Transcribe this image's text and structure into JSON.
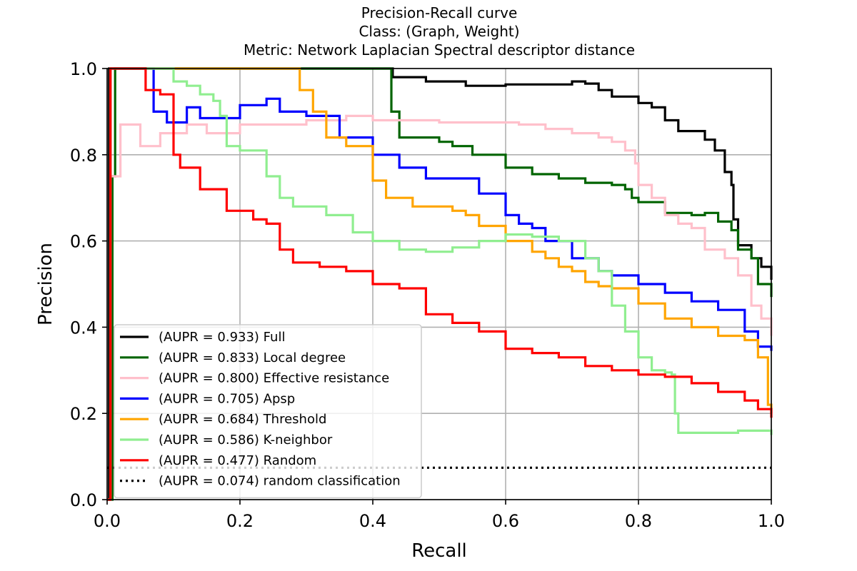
{
  "chart_data": {
    "type": "line",
    "title": [
      "Precision-Recall curve",
      "Class: (Graph, Weight)",
      "Metric: Network Laplacian Spectral descriptor distance"
    ],
    "xlabel": "Recall",
    "ylabel": "Precision",
    "xlim": [
      0.0,
      1.0
    ],
    "ylim": [
      0.0,
      1.0
    ],
    "xticks": [
      "0.0",
      "0.2",
      "0.4",
      "0.6",
      "0.8",
      "1.0"
    ],
    "yticks": [
      "0.0",
      "0.2",
      "0.4",
      "0.6",
      "0.8",
      "1.0"
    ],
    "grid": true,
    "legend_position": "lower-left",
    "series": [
      {
        "name": "(AUPR = 0.933) Full",
        "color": "#000000",
        "style": "solid",
        "points": [
          [
            0.0,
            0.0
          ],
          [
            0.003,
            1.0
          ],
          [
            0.4,
            1.0
          ],
          [
            0.43,
            0.98
          ],
          [
            0.48,
            0.97
          ],
          [
            0.54,
            0.96
          ],
          [
            0.6,
            0.963
          ],
          [
            0.7,
            0.97
          ],
          [
            0.72,
            0.965
          ],
          [
            0.74,
            0.95
          ],
          [
            0.76,
            0.935
          ],
          [
            0.8,
            0.92
          ],
          [
            0.82,
            0.91
          ],
          [
            0.84,
            0.88
          ],
          [
            0.86,
            0.855
          ],
          [
            0.9,
            0.835
          ],
          [
            0.915,
            0.81
          ],
          [
            0.93,
            0.76
          ],
          [
            0.94,
            0.73
          ],
          [
            0.943,
            0.65
          ],
          [
            0.95,
            0.59
          ],
          [
            0.97,
            0.56
          ],
          [
            0.985,
            0.54
          ],
          [
            1.0,
            0.51
          ]
        ]
      },
      {
        "name": "(AUPR = 0.833) Local degree",
        "color": "#006400",
        "style": "solid",
        "points": [
          [
            0.0,
            0.0
          ],
          [
            0.008,
            0.75
          ],
          [
            0.012,
            1.0
          ],
          [
            0.42,
            1.0
          ],
          [
            0.428,
            0.9
          ],
          [
            0.44,
            0.84
          ],
          [
            0.5,
            0.83
          ],
          [
            0.52,
            0.82
          ],
          [
            0.55,
            0.8
          ],
          [
            0.6,
            0.77
          ],
          [
            0.64,
            0.755
          ],
          [
            0.68,
            0.745
          ],
          [
            0.72,
            0.735
          ],
          [
            0.76,
            0.73
          ],
          [
            0.78,
            0.72
          ],
          [
            0.79,
            0.7
          ],
          [
            0.8,
            0.69
          ],
          [
            0.84,
            0.665
          ],
          [
            0.88,
            0.66
          ],
          [
            0.9,
            0.665
          ],
          [
            0.92,
            0.645
          ],
          [
            0.94,
            0.625
          ],
          [
            0.95,
            0.58
          ],
          [
            0.97,
            0.56
          ],
          [
            0.98,
            0.5
          ],
          [
            1.0,
            0.47
          ]
        ]
      },
      {
        "name": "(AUPR = 0.800) Effective resistance",
        "color": "#ffc0cb",
        "style": "solid",
        "points": [
          [
            0.0,
            0.0
          ],
          [
            0.005,
            0.75
          ],
          [
            0.02,
            0.87
          ],
          [
            0.05,
            0.82
          ],
          [
            0.08,
            0.85
          ],
          [
            0.12,
            0.87
          ],
          [
            0.15,
            0.85
          ],
          [
            0.2,
            0.87
          ],
          [
            0.3,
            0.88
          ],
          [
            0.36,
            0.89
          ],
          [
            0.4,
            0.88
          ],
          [
            0.5,
            0.875
          ],
          [
            0.58,
            0.875
          ],
          [
            0.62,
            0.87
          ],
          [
            0.66,
            0.86
          ],
          [
            0.7,
            0.85
          ],
          [
            0.74,
            0.84
          ],
          [
            0.76,
            0.83
          ],
          [
            0.78,
            0.81
          ],
          [
            0.795,
            0.78
          ],
          [
            0.8,
            0.73
          ],
          [
            0.82,
            0.7
          ],
          [
            0.84,
            0.66
          ],
          [
            0.86,
            0.64
          ],
          [
            0.88,
            0.63
          ],
          [
            0.9,
            0.58
          ],
          [
            0.93,
            0.56
          ],
          [
            0.95,
            0.52
          ],
          [
            0.97,
            0.45
          ],
          [
            0.985,
            0.42
          ],
          [
            1.0,
            0.38
          ]
        ]
      },
      {
        "name": "(AUPR = 0.705) Apsp",
        "color": "#0000ff",
        "style": "solid",
        "points": [
          [
            0.0,
            0.0
          ],
          [
            0.005,
            1.0
          ],
          [
            0.055,
            1.0
          ],
          [
            0.07,
            0.9
          ],
          [
            0.09,
            0.875
          ],
          [
            0.12,
            0.91
          ],
          [
            0.14,
            0.885
          ],
          [
            0.2,
            0.915
          ],
          [
            0.24,
            0.93
          ],
          [
            0.26,
            0.9
          ],
          [
            0.3,
            0.89
          ],
          [
            0.35,
            0.84
          ],
          [
            0.4,
            0.8
          ],
          [
            0.44,
            0.77
          ],
          [
            0.48,
            0.745
          ],
          [
            0.52,
            0.745
          ],
          [
            0.56,
            0.71
          ],
          [
            0.6,
            0.66
          ],
          [
            0.62,
            0.64
          ],
          [
            0.64,
            0.63
          ],
          [
            0.66,
            0.6
          ],
          [
            0.7,
            0.56
          ],
          [
            0.74,
            0.53
          ],
          [
            0.76,
            0.52
          ],
          [
            0.8,
            0.5
          ],
          [
            0.84,
            0.48
          ],
          [
            0.88,
            0.46
          ],
          [
            0.92,
            0.44
          ],
          [
            0.96,
            0.39
          ],
          [
            0.98,
            0.355
          ],
          [
            1.0,
            0.345
          ]
        ]
      },
      {
        "name": "(AUPR = 0.684) Threshold",
        "color": "#ffa500",
        "style": "solid",
        "points": [
          [
            0.0,
            0.0
          ],
          [
            0.005,
            1.0
          ],
          [
            0.265,
            1.0
          ],
          [
            0.29,
            0.95
          ],
          [
            0.31,
            0.9
          ],
          [
            0.33,
            0.84
          ],
          [
            0.36,
            0.82
          ],
          [
            0.4,
            0.74
          ],
          [
            0.42,
            0.7
          ],
          [
            0.46,
            0.68
          ],
          [
            0.52,
            0.67
          ],
          [
            0.54,
            0.66
          ],
          [
            0.56,
            0.635
          ],
          [
            0.6,
            0.6
          ],
          [
            0.64,
            0.575
          ],
          [
            0.66,
            0.56
          ],
          [
            0.68,
            0.54
          ],
          [
            0.7,
            0.53
          ],
          [
            0.72,
            0.505
          ],
          [
            0.74,
            0.495
          ],
          [
            0.76,
            0.49
          ],
          [
            0.8,
            0.455
          ],
          [
            0.84,
            0.42
          ],
          [
            0.88,
            0.4
          ],
          [
            0.92,
            0.38
          ],
          [
            0.96,
            0.37
          ],
          [
            0.98,
            0.33
          ],
          [
            0.995,
            0.22
          ],
          [
            1.0,
            0.2
          ]
        ]
      },
      {
        "name": "(AUPR = 0.586) K-neighbor",
        "color": "#90ee90",
        "style": "solid",
        "points": [
          [
            0.0,
            0.0
          ],
          [
            0.005,
            1.0
          ],
          [
            0.08,
            1.0
          ],
          [
            0.1,
            0.97
          ],
          [
            0.12,
            0.96
          ],
          [
            0.14,
            0.94
          ],
          [
            0.16,
            0.925
          ],
          [
            0.17,
            0.89
          ],
          [
            0.18,
            0.82
          ],
          [
            0.2,
            0.81
          ],
          [
            0.24,
            0.75
          ],
          [
            0.26,
            0.7
          ],
          [
            0.28,
            0.68
          ],
          [
            0.3,
            0.68
          ],
          [
            0.33,
            0.66
          ],
          [
            0.37,
            0.62
          ],
          [
            0.4,
            0.6
          ],
          [
            0.44,
            0.58
          ],
          [
            0.48,
            0.575
          ],
          [
            0.52,
            0.585
          ],
          [
            0.56,
            0.6
          ],
          [
            0.6,
            0.615
          ],
          [
            0.64,
            0.61
          ],
          [
            0.68,
            0.6
          ],
          [
            0.7,
            0.6
          ],
          [
            0.72,
            0.56
          ],
          [
            0.74,
            0.53
          ],
          [
            0.76,
            0.45
          ],
          [
            0.78,
            0.39
          ],
          [
            0.8,
            0.33
          ],
          [
            0.82,
            0.3
          ],
          [
            0.84,
            0.295
          ],
          [
            0.85,
            0.29
          ],
          [
            0.855,
            0.2
          ],
          [
            0.86,
            0.155
          ],
          [
            0.9,
            0.155
          ],
          [
            0.95,
            0.16
          ],
          [
            0.98,
            0.16
          ],
          [
            1.0,
            0.15
          ]
        ]
      },
      {
        "name": "(AUPR = 0.477) Random",
        "color": "#ff0000",
        "style": "solid",
        "points": [
          [
            0.0,
            0.0
          ],
          [
            0.005,
            1.0
          ],
          [
            0.05,
            1.0
          ],
          [
            0.058,
            0.95
          ],
          [
            0.08,
            0.94
          ],
          [
            0.1,
            0.8
          ],
          [
            0.11,
            0.77
          ],
          [
            0.14,
            0.72
          ],
          [
            0.18,
            0.67
          ],
          [
            0.22,
            0.65
          ],
          [
            0.24,
            0.64
          ],
          [
            0.26,
            0.58
          ],
          [
            0.28,
            0.55
          ],
          [
            0.32,
            0.54
          ],
          [
            0.36,
            0.53
          ],
          [
            0.4,
            0.5
          ],
          [
            0.44,
            0.49
          ],
          [
            0.48,
            0.43
          ],
          [
            0.52,
            0.41
          ],
          [
            0.56,
            0.39
          ],
          [
            0.6,
            0.35
          ],
          [
            0.64,
            0.34
          ],
          [
            0.68,
            0.33
          ],
          [
            0.72,
            0.31
          ],
          [
            0.76,
            0.3
          ],
          [
            0.8,
            0.29
          ],
          [
            0.84,
            0.285
          ],
          [
            0.88,
            0.27
          ],
          [
            0.92,
            0.25
          ],
          [
            0.96,
            0.23
          ],
          [
            0.98,
            0.21
          ],
          [
            1.0,
            0.19
          ]
        ]
      },
      {
        "name": "(AUPR = 0.074) random classification",
        "color": "#000000",
        "style": "dotted",
        "points": [
          [
            0.0,
            0.074
          ],
          [
            1.0,
            0.074
          ]
        ]
      }
    ]
  }
}
